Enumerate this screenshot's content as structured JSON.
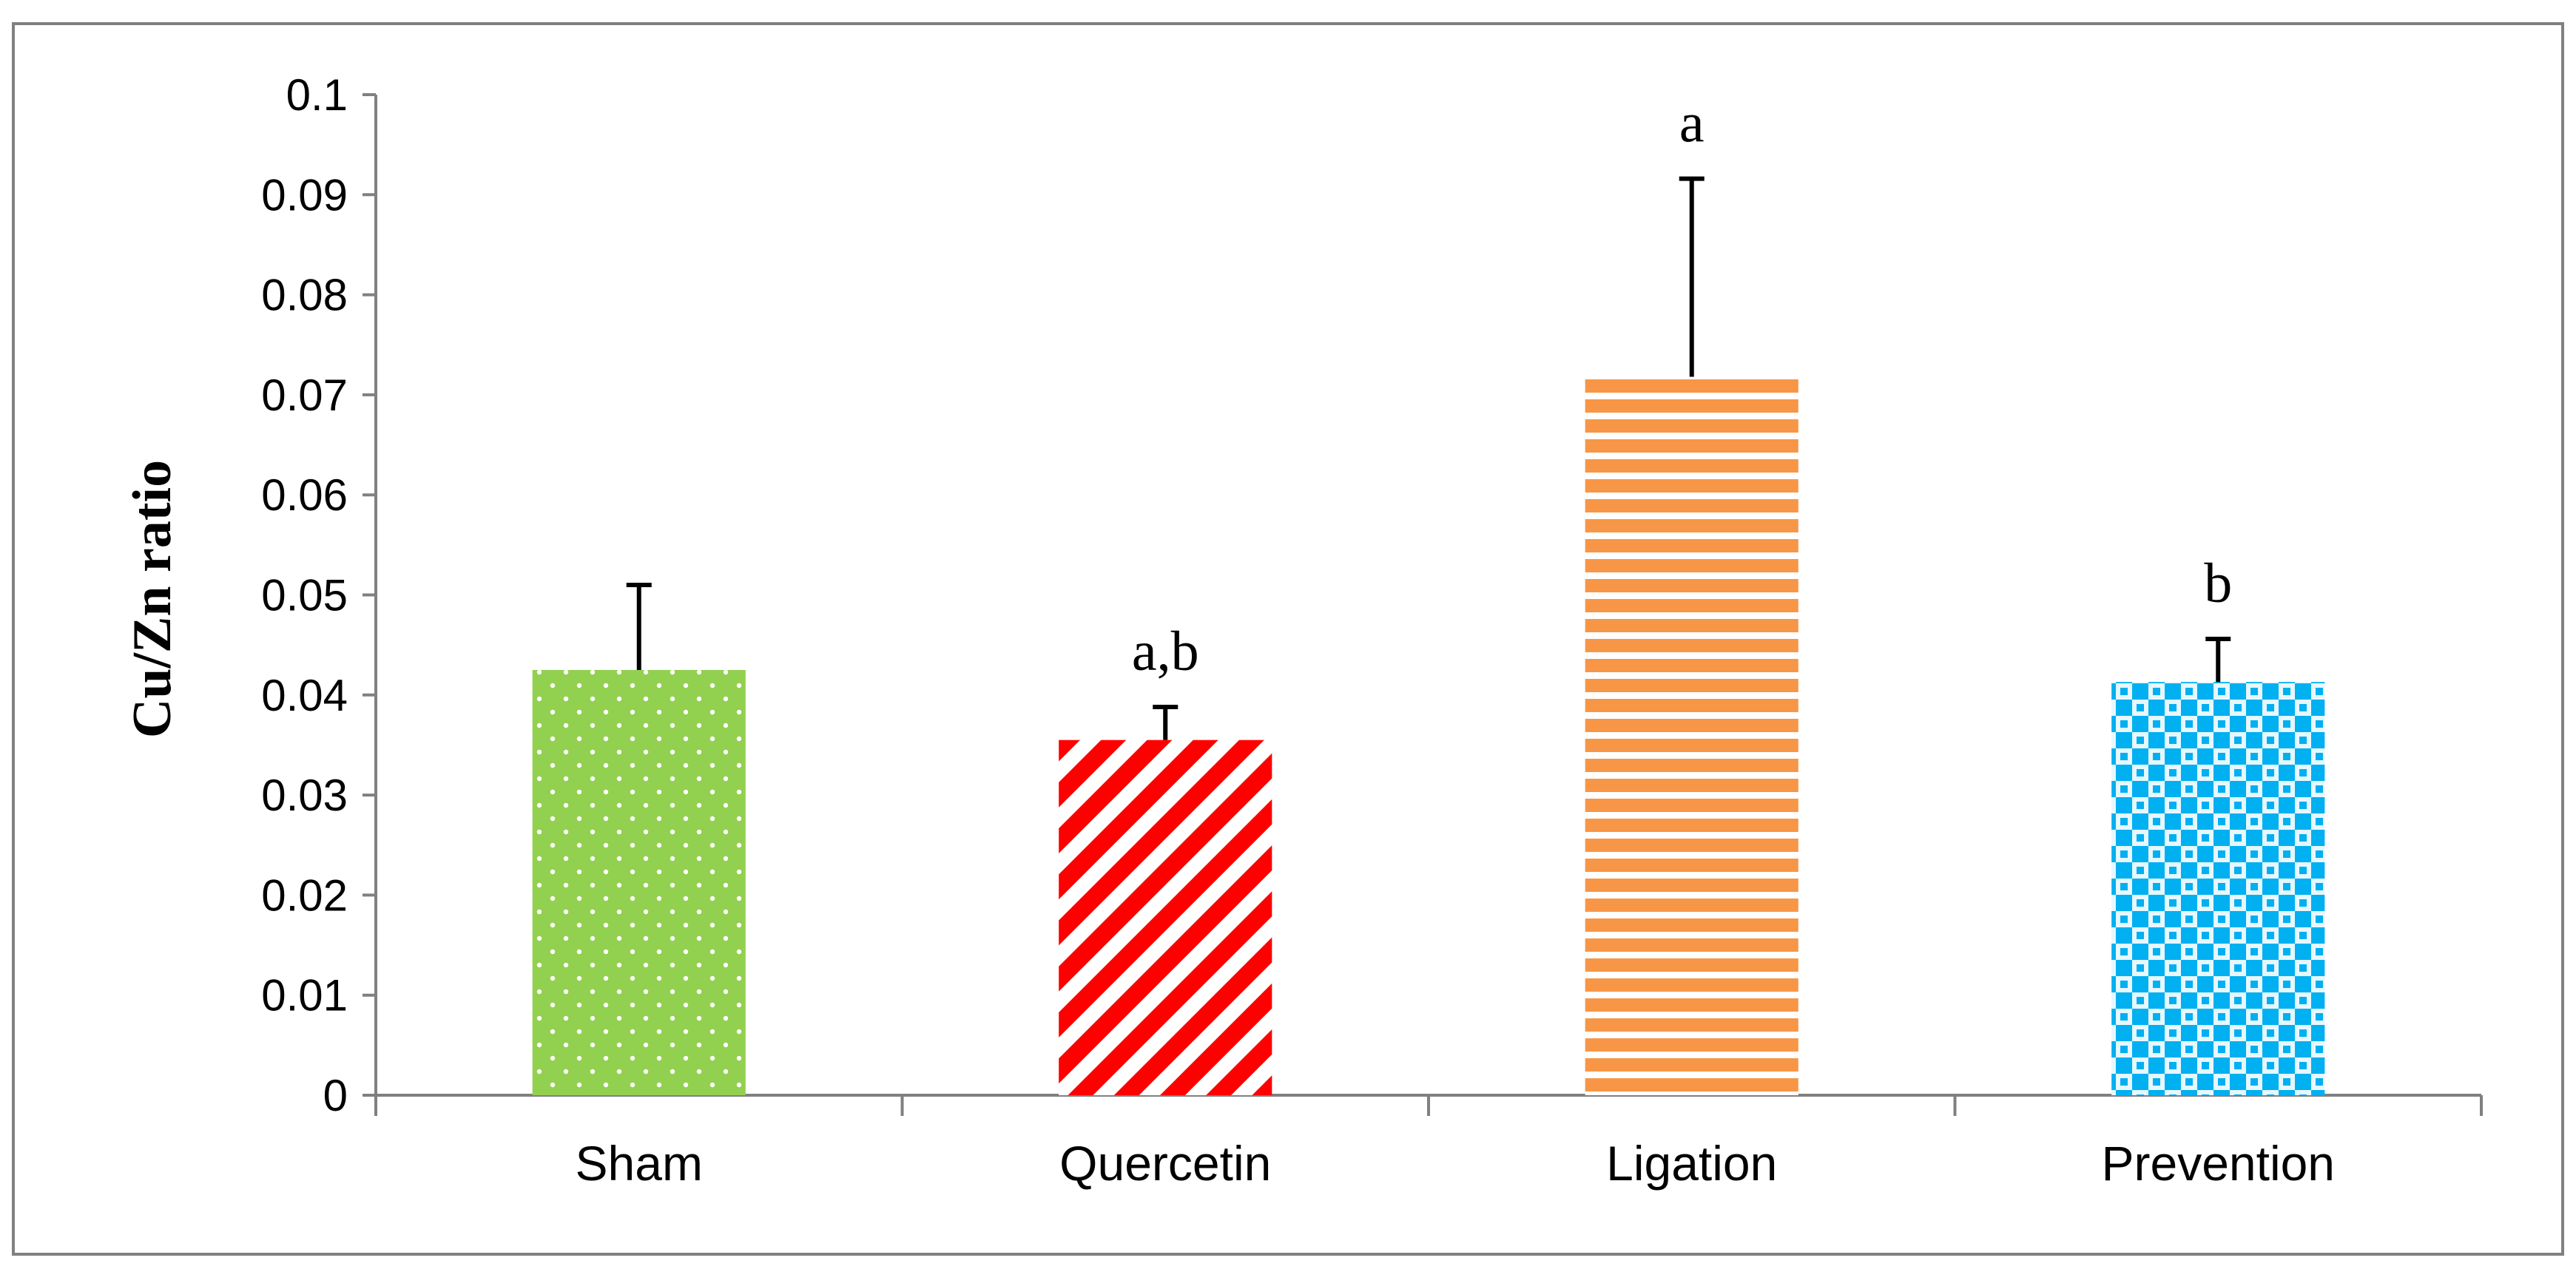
{
  "chart_data": {
    "type": "bar",
    "title": "",
    "xlabel": "",
    "ylabel": "Cu/Zn ratio",
    "ylim": [
      0,
      0.1
    ],
    "ytick_step": 0.01,
    "ytick_labels": [
      "0",
      "0.01",
      "0.02",
      "0.03",
      "0.04",
      "0.05",
      "0.06",
      "0.07",
      "0.08",
      "0.09",
      "0.1"
    ],
    "categories": [
      "Sham",
      "Quercetin",
      "Ligation",
      "Prevention"
    ],
    "values": [
      0.0425,
      0.0355,
      0.0718,
      0.0413
    ],
    "error_upper": [
      0.0085,
      0.0033,
      0.0198,
      0.0043
    ],
    "significance_labels": [
      "",
      "a,b",
      "a",
      "b"
    ],
    "grid": false,
    "legend": "none",
    "bar_styles": [
      {
        "pattern": "dots",
        "color": "#92D050",
        "pattern_color": "#FFFFFF"
      },
      {
        "pattern": "diagonal-stripes",
        "color": "#FF0000",
        "pattern_color": "#FFFFFF"
      },
      {
        "pattern": "horizontal-stripes",
        "color": "#F79646",
        "pattern_color": "#FFFFFF"
      },
      {
        "pattern": "checker",
        "color": "#00B0F0",
        "pattern_color": "#FFFFFF"
      }
    ],
    "axis_color": "#808080",
    "frame_color": "#808080",
    "error_bar_color": "#000000"
  }
}
